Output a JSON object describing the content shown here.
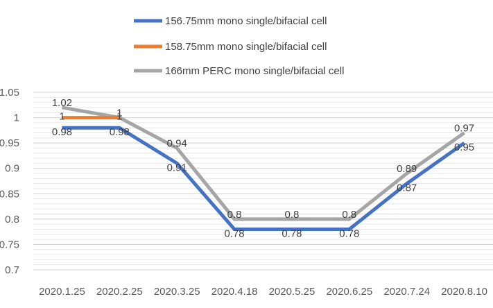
{
  "chart_data": {
    "type": "line",
    "categories": [
      "2020.1.25",
      "2020.2.25",
      "2020.3.25",
      "2020.4.18",
      "2020.5.25",
      "2020.6.25",
      "2020.7.24",
      "2020.8.10"
    ],
    "yticks": [
      "0.7",
      "0.75",
      "0.8",
      "0.85",
      "0.9",
      "0.95",
      "1",
      "1.05"
    ],
    "ylim": [
      0.7,
      1.05
    ],
    "grid": true,
    "legend_position": "top",
    "series": [
      {
        "name": "156.75mm mono single/bifacial cell",
        "color": "#4472C4",
        "values": [
          0.98,
          0.98,
          0.91,
          0.78,
          0.78,
          0.78,
          0.87,
          0.95
        ],
        "labels": [
          "0.98",
          "0.98",
          "0.91",
          "0.78",
          "0.78",
          "0.78",
          "0.87",
          "0.95"
        ]
      },
      {
        "name": "158.75mm mono single/bifacial cell",
        "color": "#ED7D31",
        "values": [
          1,
          1,
          null,
          null,
          null,
          null,
          null,
          null
        ],
        "labels": [
          "1",
          "1",
          null,
          null,
          null,
          null,
          null,
          null
        ]
      },
      {
        "name": "166mm PERC mono single/bifacial cell",
        "color": "#A5A5A5",
        "values": [
          1.02,
          1,
          0.94,
          0.8,
          0.8,
          0.8,
          0.89,
          0.97
        ],
        "labels": [
          "1.02",
          "1",
          "0.94",
          "0.8",
          "0.8",
          "0.8",
          "0.89",
          "0.97"
        ]
      }
    ]
  }
}
